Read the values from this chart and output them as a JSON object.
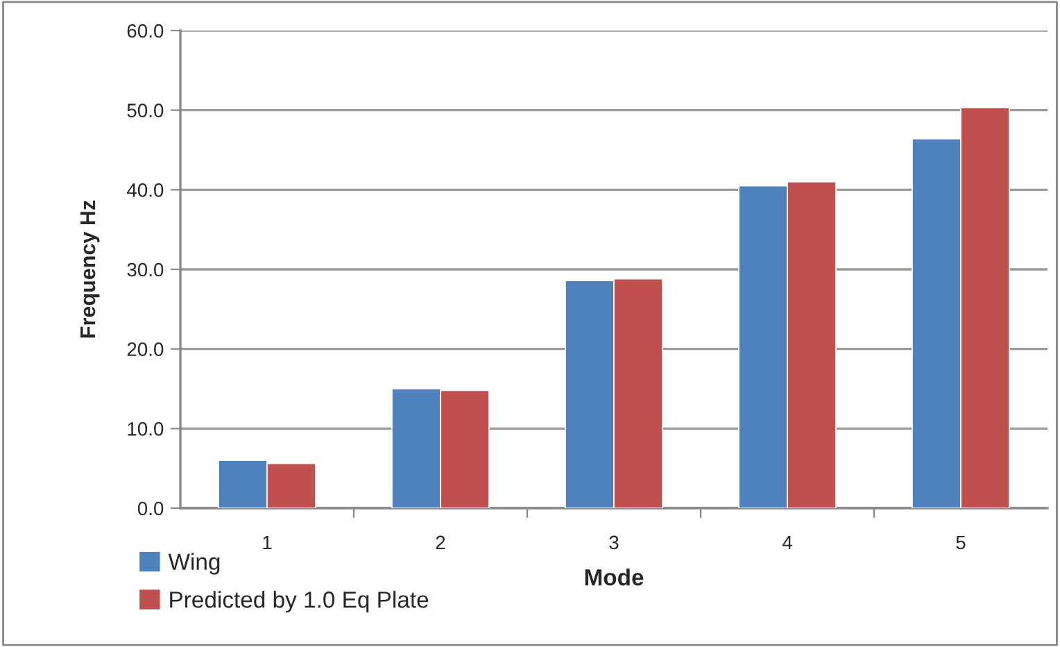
{
  "chart_data": {
    "type": "bar",
    "xlabel": "Mode",
    "ylabel": "Frequency Hz",
    "categories": [
      "1",
      "2",
      "3",
      "4",
      "5"
    ],
    "series": [
      {
        "name": "Wing",
        "color": "#4f81bd",
        "values": [
          6.0,
          15.0,
          28.6,
          40.5,
          46.4
        ]
      },
      {
        "name": "Predicted by 1.0 Eq Plate",
        "color": "#c0504d",
        "values": [
          5.6,
          14.8,
          28.8,
          41.0,
          50.3
        ]
      }
    ],
    "ylim": [
      0,
      60
    ],
    "yticks": [
      {
        "value": 0,
        "label": "0.0"
      },
      {
        "value": 10,
        "label": "10.0"
      },
      {
        "value": 20,
        "label": "20.0"
      },
      {
        "value": 30,
        "label": "30.0"
      },
      {
        "value": 40,
        "label": "40.0"
      },
      {
        "value": 50,
        "label": "50.0"
      },
      {
        "value": 60,
        "label": "60.0"
      }
    ],
    "grid": "y",
    "legend": "bottom left"
  }
}
